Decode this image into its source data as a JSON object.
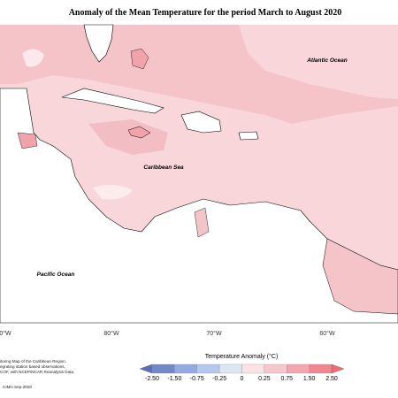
{
  "title": "Anomaly of the Mean Temperature for the period March to August 2020",
  "ocean_labels": {
    "atlantic": "Atlantic Ocean",
    "caribbean": "Caribbean Sea",
    "pacific": "Pacific Ocean"
  },
  "longitudes": [
    "0°W",
    "80°W",
    "70°W",
    "60°W"
  ],
  "legend": {
    "title": "Temperature Anomaly (°C)",
    "ticks": [
      "-2.50",
      "-1.50",
      "-0.75",
      "-0.25",
      "0",
      "0.25",
      "0.75",
      "1.50",
      "2.50"
    ]
  },
  "footnote": [
    "itoring Map of the Caribbean Region.",
    "egrating station based observations,",
    "COF, with NCEP/NCAR Reanalysis Data."
  ],
  "credit": "CIMH Sep-2020"
}
